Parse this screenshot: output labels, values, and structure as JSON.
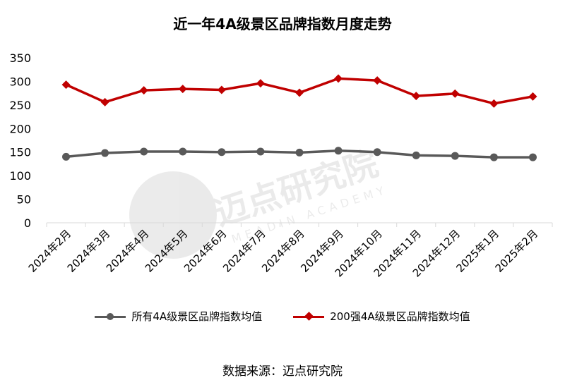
{
  "title": "近一年4A级景区品牌指数月度走势",
  "source": "数据来源：迈点研究院",
  "watermark": {
    "main": "迈点研究院",
    "sub": "MEADIN ACADEMY"
  },
  "colors": {
    "all": "#595959",
    "top200": "#C00000",
    "grid": "#d9d9d9"
  },
  "chart_data": {
    "type": "line",
    "categories": [
      "2024年2月",
      "2024年3月",
      "2024年4月",
      "2024年5月",
      "2024年6月",
      "2024年7月",
      "2024年8月",
      "2024年9月",
      "2024年10月",
      "2024年11月",
      "2024年12月",
      "2025年1月",
      "2025年2月"
    ],
    "ylim": [
      0,
      350
    ],
    "yticks": [
      0,
      50,
      100,
      150,
      200,
      250,
      300,
      350
    ],
    "grid": false,
    "legend": "bottom",
    "series": [
      {
        "name": "所有4A级景区品牌指数均值",
        "marker": "circle",
        "values": [
          140,
          148,
          151,
          151,
          150,
          151,
          149,
          153,
          150,
          143,
          142,
          139,
          139
        ]
      },
      {
        "name": "200强4A级景区品牌指数均值",
        "marker": "diamond",
        "values": [
          293,
          256,
          281,
          284,
          282,
          296,
          276,
          306,
          302,
          269,
          274,
          253,
          268
        ]
      }
    ]
  }
}
